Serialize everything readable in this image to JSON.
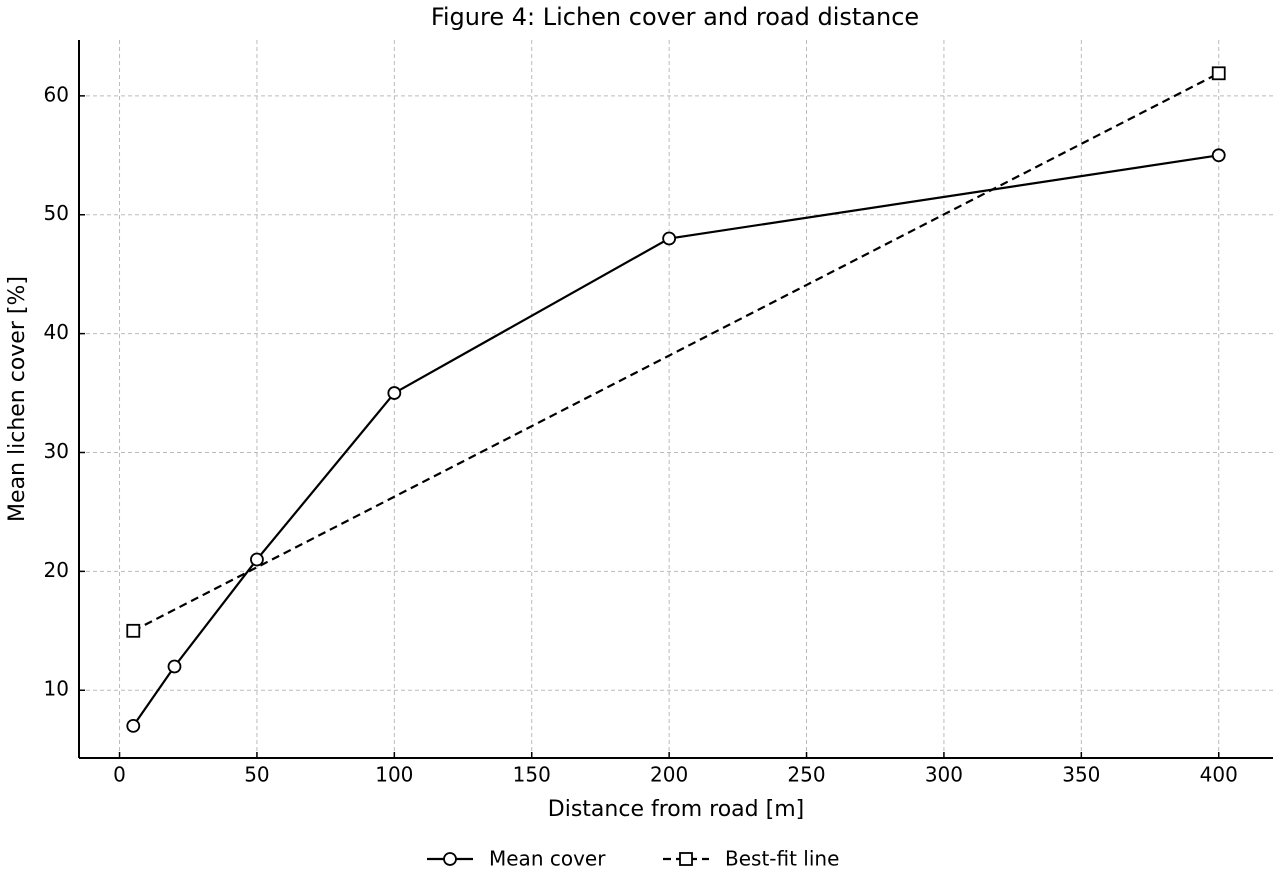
{
  "chart_data": {
    "type": "line",
    "title": "Figure 4: Lichen cover and road distance",
    "xlabel": "Distance from road [m]",
    "ylabel": "Mean lichen cover [%]",
    "xlim": [
      -14.75,
      419.75
    ],
    "ylim": [
      4.3,
      64.7
    ],
    "xticks": [
      0,
      50,
      100,
      150,
      200,
      250,
      300,
      350,
      400
    ],
    "yticks": [
      10,
      20,
      30,
      40,
      50,
      60
    ],
    "grid": true,
    "legend": "bottom",
    "series": [
      {
        "name": "Mean cover",
        "color": "#000000",
        "linestyle": "solid",
        "marker": "circle",
        "x": [
          5,
          20,
          50,
          100,
          200,
          400
        ],
        "values": [
          7,
          12,
          21,
          35,
          48,
          55
        ]
      },
      {
        "name": "Best-fit line",
        "color": "#000000",
        "linestyle": "dashed",
        "marker": "square",
        "x": [
          5,
          400
        ],
        "values": [
          15,
          61.9
        ]
      }
    ]
  }
}
